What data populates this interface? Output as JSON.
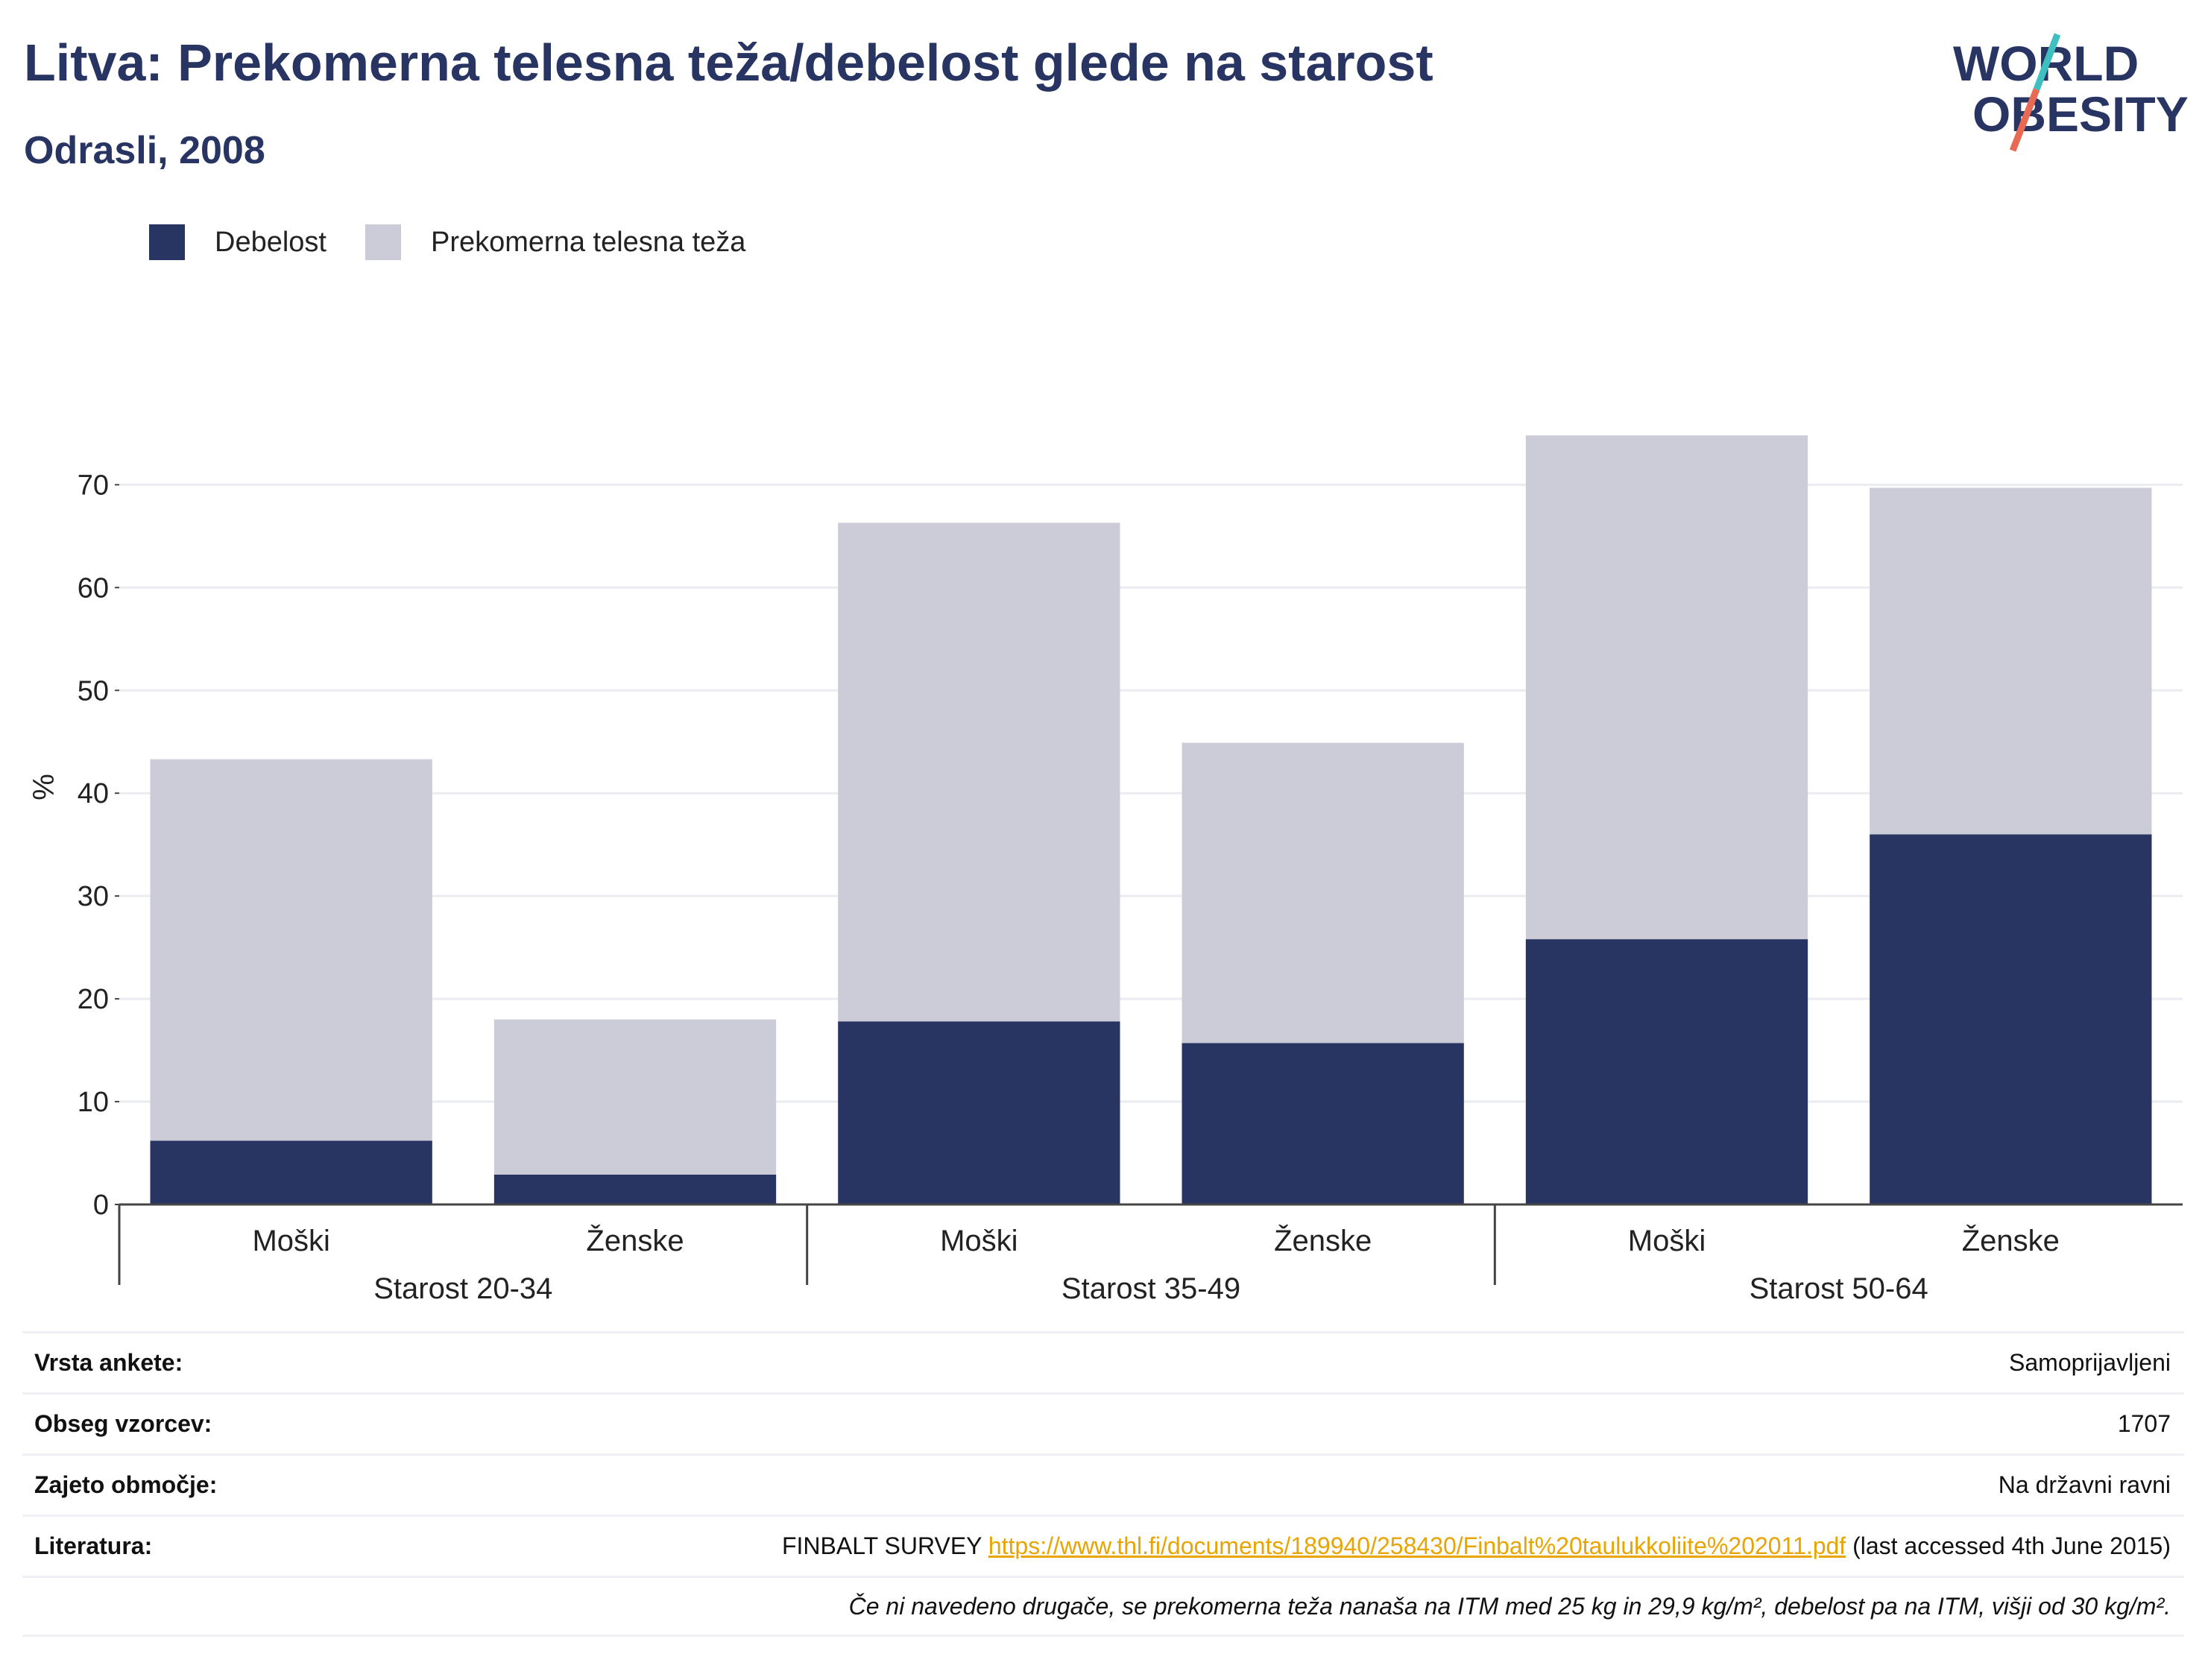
{
  "header": {
    "title": "Litva: Prekomerna telesna teža/debelost glede na starost",
    "subtitle": "Odrasli, 2008",
    "logo": {
      "line1": "WORLD",
      "line2": "OBESITY"
    }
  },
  "legend": [
    {
      "label": "Debelost",
      "color": "#283462"
    },
    {
      "label": "Prekomerna telesna teža",
      "color": "#cbccd8"
    }
  ],
  "chart_data": {
    "type": "bar",
    "stacked": true,
    "ylabel": "%",
    "xlabel": "",
    "ylim": [
      0,
      78
    ],
    "yticks": [
      0,
      10,
      20,
      30,
      40,
      50,
      60,
      70
    ],
    "grid": true,
    "legend_position": "top-left",
    "categories": [
      "Moški",
      "Ženske",
      "Moški",
      "Ženske",
      "Moški",
      "Ženske"
    ],
    "groups": [
      {
        "label": "Starost 20-34",
        "span": [
          0,
          1
        ]
      },
      {
        "label": "Starost 35-49",
        "span": [
          2,
          3
        ]
      },
      {
        "label": "Starost 50-64",
        "span": [
          4,
          5
        ]
      }
    ],
    "series": [
      {
        "name": "Debelost",
        "color": "#283462",
        "values": [
          6.2,
          2.9,
          17.8,
          15.7,
          25.8,
          36.0
        ]
      },
      {
        "name": "Prekomerna telesna teža",
        "color": "#cbccd8",
        "values": [
          37.1,
          15.1,
          48.5,
          29.2,
          49.0,
          33.7
        ]
      }
    ]
  },
  "info": {
    "survey_type_label": "Vrsta ankete:",
    "survey_type_value": "Samoprijavljeni",
    "sample_label": "Obseg vzorcev:",
    "sample_value": "1707",
    "area_label": "Zajeto območje:",
    "area_value": "Na državni ravni",
    "lit_label": "Literatura:",
    "lit_prefix": "FINBALT SURVEY",
    "lit_link": "https://www.thl.fi/documents/189940/258430/Finbalt%20taulukkoliite%202011.pdf",
    "lit_suffix": "(last accessed 4th June 2015)",
    "note": "Če ni navedeno drugače, se prekomerna teža nanaša na ITM med 25 kg in 29,9 kg/m², debelost pa na ITM, višji od 30 kg/m²."
  }
}
